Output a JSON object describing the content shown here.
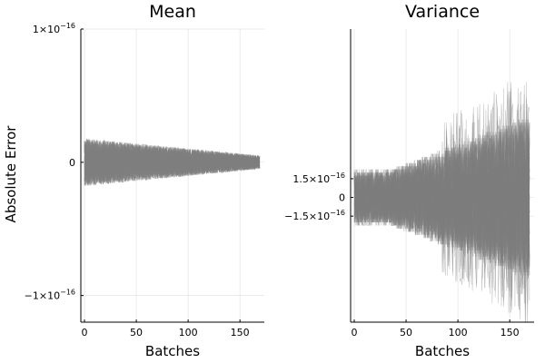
{
  "chart_data": [
    {
      "type": "line",
      "title": "Mean",
      "xlabel": "Batches",
      "ylabel": "Absolute Error",
      "xlim": [
        0,
        170
      ],
      "ylim": [
        -1.2e-16,
        1e-16
      ],
      "xticks": [
        {
          "value": 0,
          "label": "0"
        },
        {
          "value": 50,
          "label": "50"
        },
        {
          "value": 100,
          "label": "100"
        },
        {
          "value": 150,
          "label": "150"
        }
      ],
      "yticks": [
        {
          "value": 1e-16,
          "mant": "1×10",
          "exp": "−16"
        },
        {
          "value": 0,
          "mant": "0",
          "exp": ""
        },
        {
          "value": -1e-16,
          "mant": "−1×10",
          "exp": "−16"
        }
      ],
      "series_count": 60,
      "n_batches": 170,
      "line_color": "#7f7f7f",
      "envelope_start": 1.8e-17,
      "envelope_end": 5e-18,
      "grid": true,
      "legend": "none"
    },
    {
      "type": "line",
      "title": "Variance",
      "xlabel": "Batches",
      "ylabel": "",
      "xlim": [
        0,
        170
      ],
      "ylim": [
        -1e-15,
        1.35e-15
      ],
      "xticks": [
        {
          "value": 0,
          "label": "0"
        },
        {
          "value": 50,
          "label": "50"
        },
        {
          "value": 100,
          "label": "100"
        },
        {
          "value": 150,
          "label": "150"
        }
      ],
      "yticks": [
        {
          "value": 1.5e-16,
          "mant": "1.5×10",
          "exp": "−16"
        },
        {
          "value": 0,
          "mant": "0",
          "exp": ""
        },
        {
          "value": -1.5e-16,
          "mant": "−1.5×10",
          "exp": "−16"
        }
      ],
      "series_count": 60,
      "n_batches": 170,
      "line_color": "#7f7f7f",
      "envelope_start": 2.2e-16,
      "envelope_end": 6.5e-16,
      "grid": true,
      "legend": "none"
    }
  ]
}
